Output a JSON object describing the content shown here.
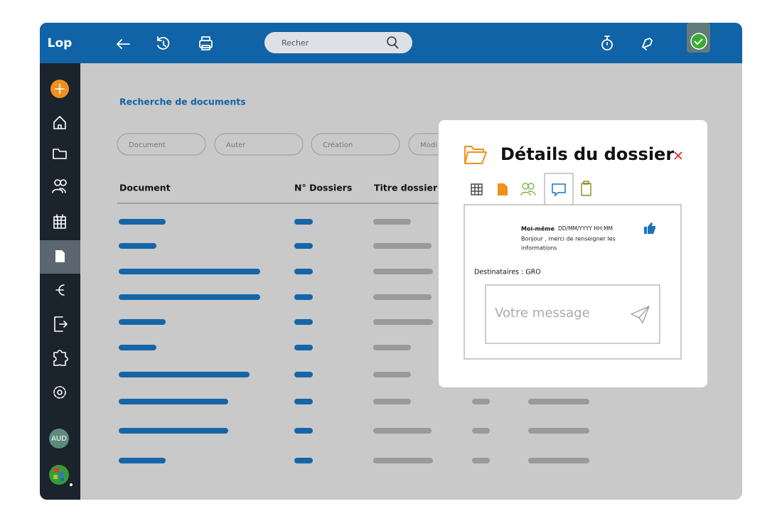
{
  "app": {
    "logo": "Lop",
    "search_placeholder": "Recher",
    "user_initials": "AUD"
  },
  "page": {
    "title": "Recherche de documents",
    "filters": [
      "Document",
      "Auter",
      "Création",
      "Modi"
    ],
    "table": {
      "headers": [
        "Document",
        "N° Dossiers",
        "Titre dossier"
      ]
    }
  },
  "modal": {
    "title": "Détails du dossier",
    "message": {
      "author": "Moi-même",
      "date": "DD/MM/YYYY HH:MM",
      "text_line1": "Bonjour , merci de renseigner les",
      "text_line2": "informations"
    },
    "recipients": "Destinataires : GRO",
    "input_placeholder": "Votre message"
  }
}
